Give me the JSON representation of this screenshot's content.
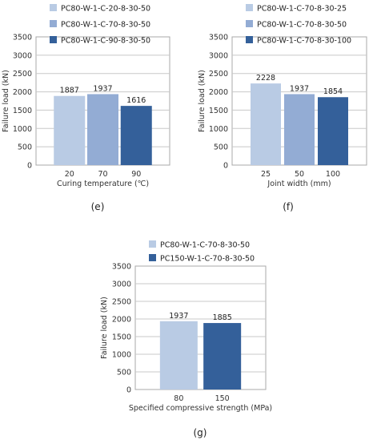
{
  "panel_labels": [
    "(e)",
    "(f)",
    "(g)"
  ],
  "chart_data": [
    {
      "type": "bar",
      "categories": [
        "20",
        "70",
        "90"
      ],
      "series": [
        {
          "name": "PC80-W-1-C-20-8-30-50",
          "values": [
            1887,
            null,
            null
          ],
          "color": "#b9cbe4"
        },
        {
          "name": "PC80-W-1-C-70-8-30-50",
          "values": [
            null,
            1937,
            null
          ],
          "color": "#93acd4"
        },
        {
          "name": "PC80-W-1-C-90-8-30-50",
          "values": [
            null,
            null,
            1616
          ],
          "color": "#34609a"
        }
      ],
      "data_labels": [
        "1887",
        "1937",
        "1616"
      ],
      "title": "",
      "xlabel": "Curing temperature (℃)",
      "ylabel": "Failure load (kN)",
      "ylim": [
        0,
        3500
      ],
      "yticks": [
        "0",
        "500",
        "1000",
        "1500",
        "2000",
        "2500",
        "3000",
        "3500"
      ],
      "grid": true,
      "legend_position": "top-left"
    },
    {
      "type": "bar",
      "categories": [
        "25",
        "50",
        "100"
      ],
      "series": [
        {
          "name": "PC80-W-1-C-70-8-30-25",
          "values": [
            2228,
            null,
            null
          ],
          "color": "#b9cbe4"
        },
        {
          "name": "PC80-W-1-C-70-8-30-50",
          "values": [
            null,
            1937,
            null
          ],
          "color": "#93acd4"
        },
        {
          "name": "PC80-W-1-C-70-8-30-100",
          "values": [
            null,
            null,
            1854
          ],
          "color": "#34609a"
        }
      ],
      "data_labels": [
        "2228",
        "1937",
        "1854"
      ],
      "title": "",
      "xlabel": "Joint width (mm)",
      "ylabel": "Failure load (kN)",
      "ylim": [
        0,
        3500
      ],
      "yticks": [
        "0",
        "500",
        "1000",
        "1500",
        "2000",
        "2500",
        "3000",
        "3500"
      ],
      "grid": true,
      "legend_position": "top-left"
    },
    {
      "type": "bar",
      "categories": [
        "80",
        "150"
      ],
      "series": [
        {
          "name": "PC80-W-1-C-70-8-30-50",
          "values": [
            1937,
            null
          ],
          "color": "#b9cbe4"
        },
        {
          "name": "PC150-W-1-C-70-8-30-50",
          "values": [
            null,
            1885
          ],
          "color": "#34609a"
        }
      ],
      "data_labels": [
        "1937",
        "1885"
      ],
      "title": "",
      "xlabel": "Specified compressive strength (MPa)",
      "ylabel": "Failure load (kN)",
      "ylim": [
        0,
        3500
      ],
      "yticks": [
        "0",
        "500",
        "1000",
        "1500",
        "2000",
        "2500",
        "3000",
        "3500"
      ],
      "grid": true,
      "legend_position": "top-left"
    }
  ]
}
